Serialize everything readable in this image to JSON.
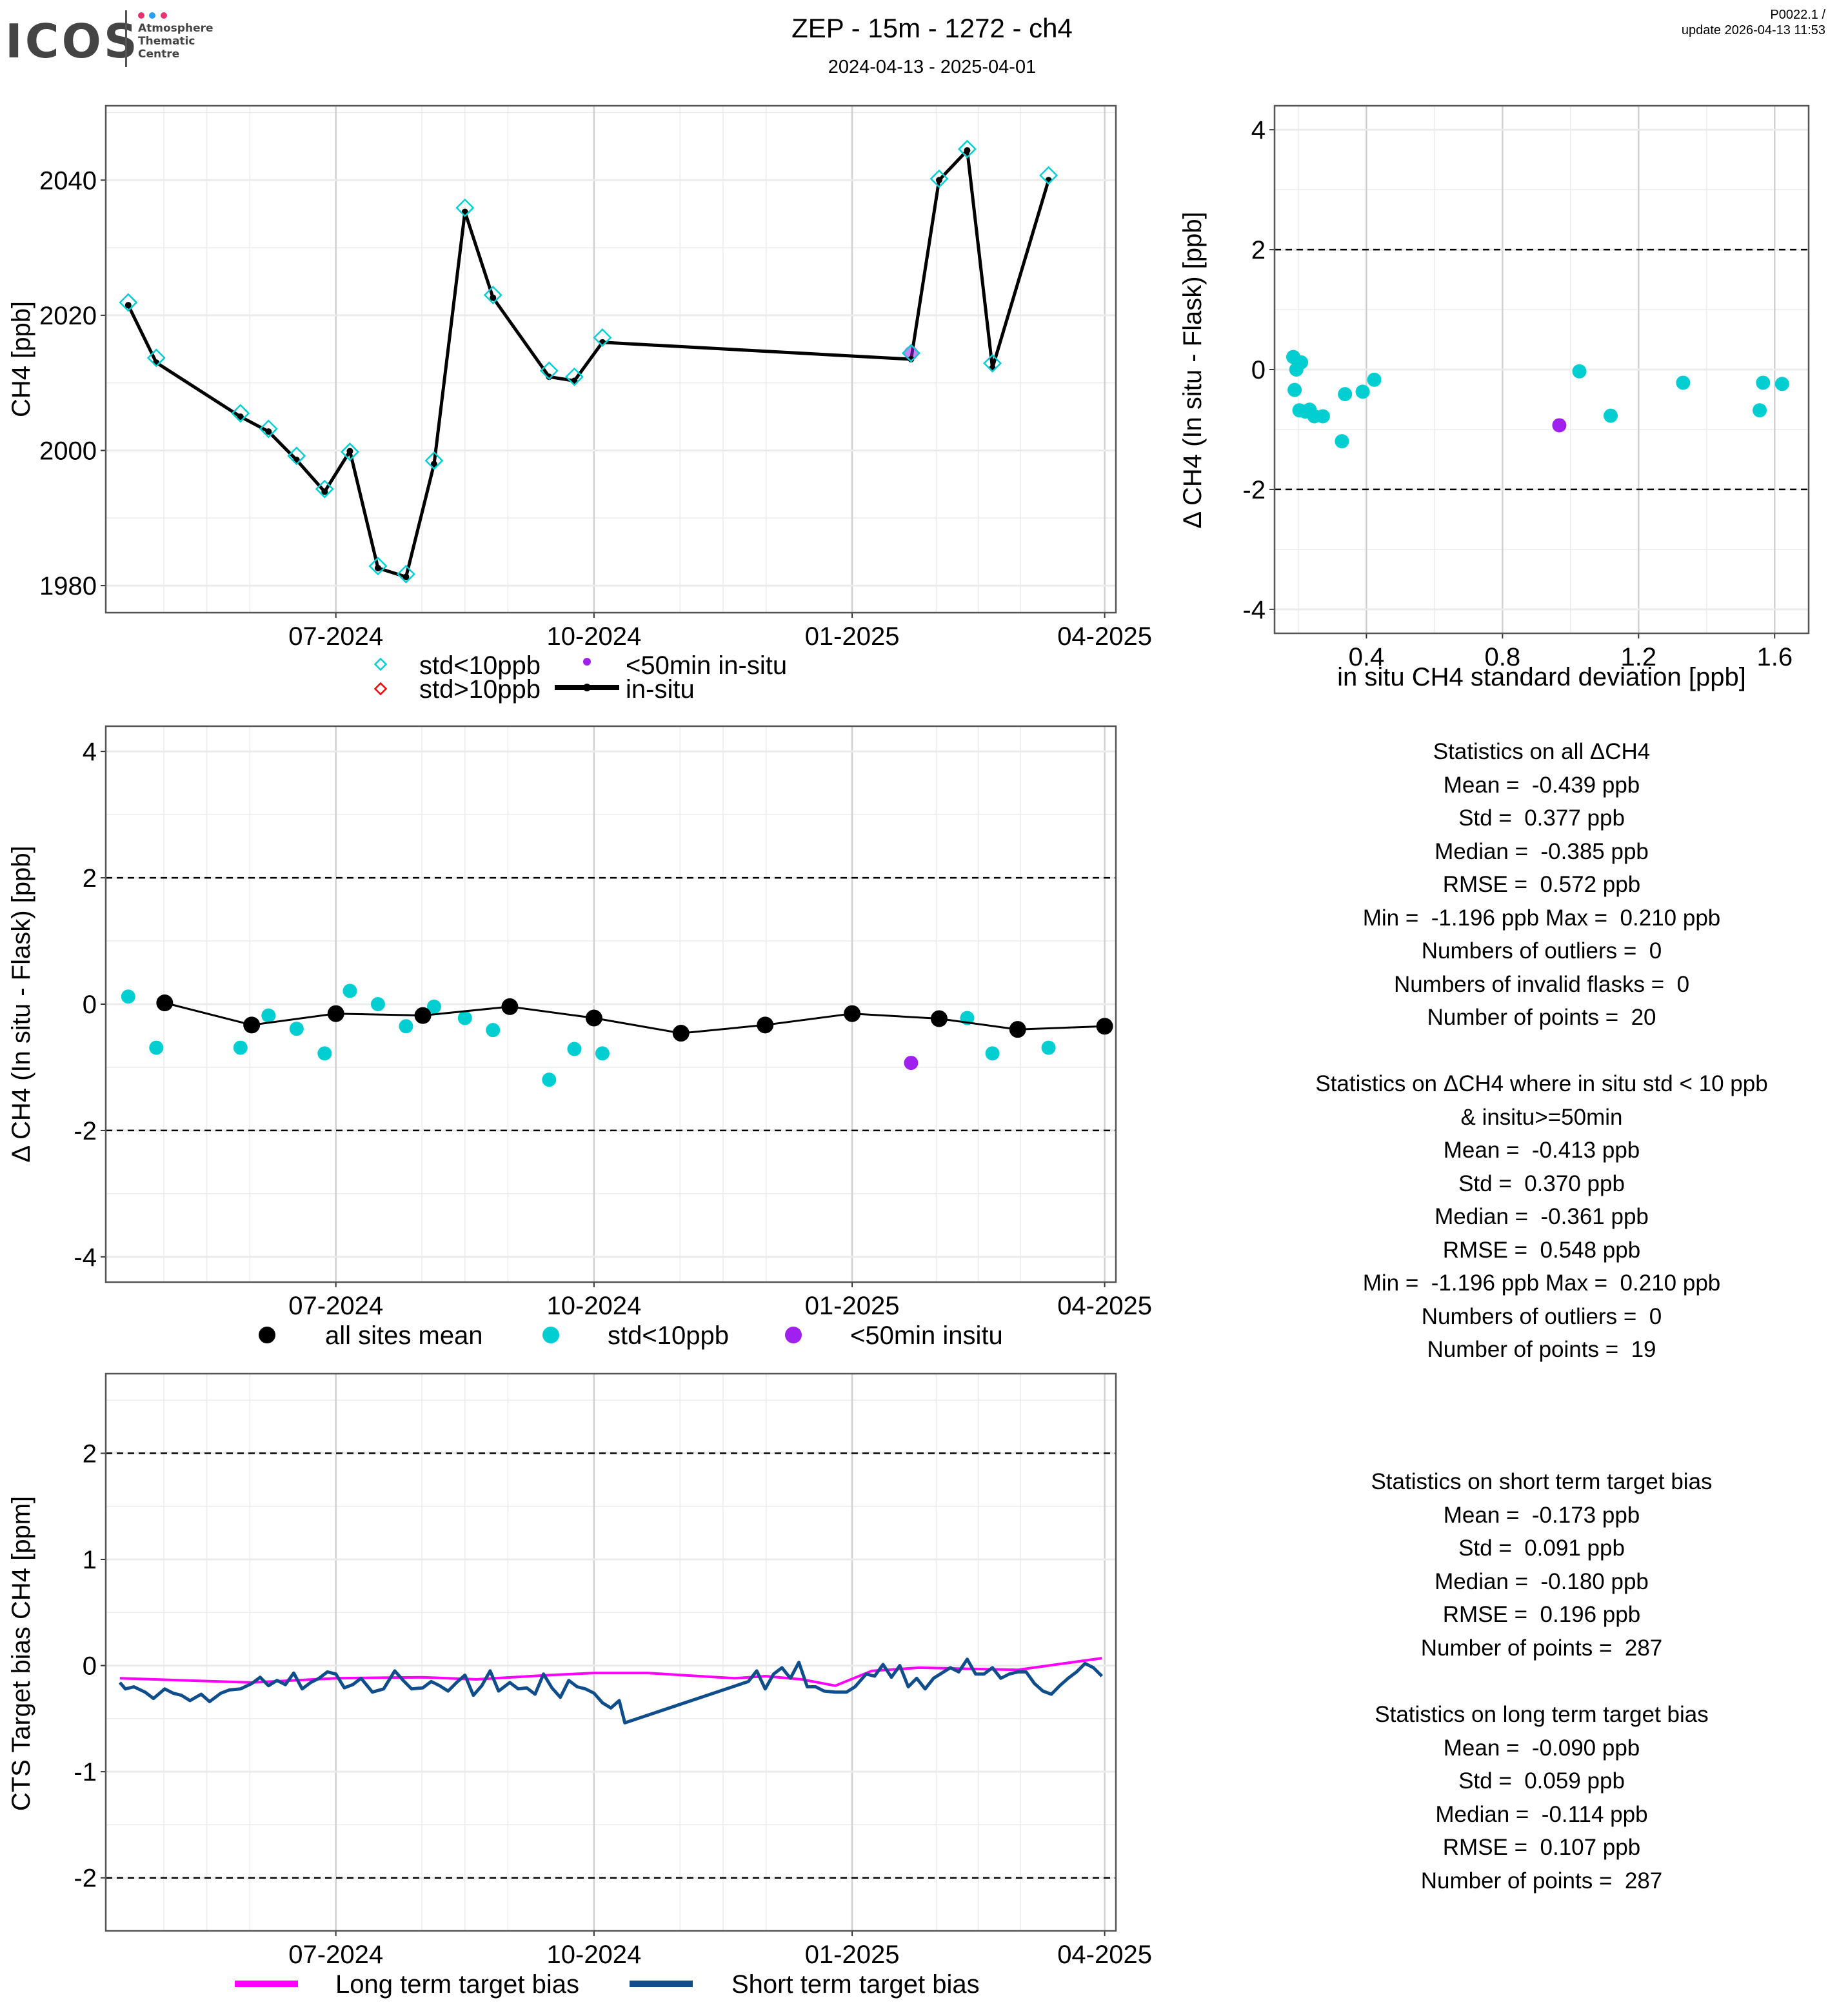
{
  "header": {
    "logo_text": "ICOS",
    "logo_sub": [
      "Atmosphere",
      "Thematic",
      "Centre"
    ],
    "logo_dot_colors": [
      "#e6336f",
      "#2a9df4",
      "#e6336f"
    ],
    "title": "ZEP - 15m - 1272 - ch4",
    "subtitle": "2024-04-13 - 2025-04-01",
    "version": "P0022.1 /",
    "update": "update  2026-04-13 11:53"
  },
  "colors": {
    "cyan": "#00CED1",
    "purple": "#A020F0",
    "red": "#FF0000",
    "black": "#000000",
    "magenta": "#FF00FF",
    "navy": "#104E8B"
  },
  "chart_data": [
    {
      "id": "timeseries",
      "type": "line",
      "ylabel": "CH4 [ppb]",
      "xlabel": "",
      "x_ticks": [
        "07-2024",
        "10-2024",
        "01-2025",
        "04-2025"
      ],
      "x_tick_dates": [
        "2024-07-01",
        "2024-10-01",
        "2025-01-01",
        "2025-04-01"
      ],
      "xlim": [
        "2024-04-10",
        "2025-04-05"
      ],
      "y_ticks": [
        1980,
        2000,
        2020,
        2040
      ],
      "ylim": [
        1976,
        2051
      ],
      "grid": true,
      "legend": {
        "position": "bottom",
        "items": [
          {
            "label": "std<10ppb",
            "symbol": "diamond",
            "color": "#00CED1"
          },
          {
            "label": "<50min in-situ",
            "symbol": "dot",
            "color": "#A020F0"
          },
          {
            "label": "std>10ppb",
            "symbol": "diamond",
            "color": "#FF0000"
          },
          {
            "label": "in-situ",
            "symbol": "line",
            "color": "#000000"
          }
        ]
      },
      "series": [
        {
          "name": "in-situ",
          "x": [
            "2024-04-18",
            "2024-04-28",
            "2024-05-28",
            "2024-06-07",
            "2024-06-17",
            "2024-06-27",
            "2024-07-06",
            "2024-07-16",
            "2024-07-26",
            "2024-08-05",
            "2024-08-16",
            "2024-08-26",
            "2024-09-15",
            "2024-09-24",
            "2024-10-04",
            "2025-01-22",
            "2025-02-01",
            "2025-02-11",
            "2025-02-20",
            "2025-03-12"
          ],
          "values": [
            2021.5,
            2013.0,
            2005.0,
            2002.8,
            1998.6,
            1993.9,
            1999.9,
            1982.6,
            1981.3,
            1998.0,
            2035.3,
            2022.6,
            2010.9,
            2010.3,
            2016.0,
            2013.5,
            2040.0,
            2044.4,
            2012.2,
            2040.0
          ]
        },
        {
          "name": "flask std<10ppb",
          "x": [
            "2024-04-18",
            "2024-04-28",
            "2024-05-28",
            "2024-06-07",
            "2024-06-17",
            "2024-06-27",
            "2024-07-06",
            "2024-07-16",
            "2024-07-26",
            "2024-08-05",
            "2024-08-16",
            "2024-08-26",
            "2024-09-15",
            "2024-09-24",
            "2024-10-04",
            "2025-01-22",
            "2025-02-01",
            "2025-02-11",
            "2025-02-20",
            "2025-03-12"
          ],
          "values": [
            2021.9,
            2013.7,
            2005.5,
            2003.2,
            1999.2,
            1994.3,
            1999.8,
            1982.9,
            1981.7,
            1998.5,
            2035.9,
            2023.0,
            2011.8,
            2010.9,
            2016.7,
            2014.4,
            2040.2,
            2044.6,
            2012.9,
            2040.7
          ]
        },
        {
          "name": "<50min in-situ",
          "x": [
            "2025-01-22"
          ],
          "values": [
            2014.4
          ]
        }
      ]
    },
    {
      "id": "scatter_std",
      "type": "scatter",
      "xlabel": "in situ CH4 standard deviation [ppb]",
      "ylabel": "Δ CH4 (In situ - Flask) [ppb]",
      "x_ticks": [
        0.4,
        0.8,
        1.2,
        1.6
      ],
      "xlim": [
        0.13,
        1.7
      ],
      "y_ticks": [
        -4,
        -2,
        0,
        2,
        4
      ],
      "ylim": [
        -4.4,
        4.4
      ],
      "hlines": [
        2,
        -2
      ],
      "grid": true,
      "series": [
        {
          "name": "std<10ppb",
          "x": [
            0.185,
            0.208,
            0.194,
            0.189,
            0.203,
            0.22,
            0.233,
            0.247,
            0.272,
            0.328,
            0.337,
            0.389,
            0.423,
            1.026,
            1.118,
            1.331,
            1.556,
            1.566,
            1.622
          ],
          "values": [
            0.21,
            0.12,
            0.0,
            -0.34,
            -0.68,
            -0.7,
            -0.67,
            -0.78,
            -0.78,
            -1.196,
            -0.41,
            -0.37,
            -0.17,
            -0.03,
            -0.77,
            -0.22,
            -0.68,
            -0.22,
            -0.24
          ]
        },
        {
          "name": "<50min insitu",
          "x": [
            0.967
          ],
          "values": [
            -0.93
          ]
        }
      ]
    },
    {
      "id": "delta_timeseries",
      "type": "scatter",
      "xlabel": "",
      "ylabel": "Δ CH4 (In situ - Flask) [ppb]",
      "x_ticks": [
        "07-2024",
        "10-2024",
        "01-2025",
        "04-2025"
      ],
      "x_tick_dates": [
        "2024-07-01",
        "2024-10-01",
        "2025-01-01",
        "2025-04-01"
      ],
      "xlim": [
        "2024-04-10",
        "2025-04-05"
      ],
      "y_ticks": [
        -4,
        -2,
        0,
        2,
        4
      ],
      "ylim": [
        -4.4,
        4.4
      ],
      "hlines": [
        2,
        -2
      ],
      "grid": true,
      "legend": {
        "position": "bottom",
        "items": [
          {
            "label": "all sites mean",
            "color": "#000000"
          },
          {
            "label": "std<10ppb",
            "color": "#00CED1"
          },
          {
            "label": "<50min insitu",
            "color": "#A020F0"
          }
        ]
      },
      "series": [
        {
          "name": "std<10ppb",
          "x": [
            "2024-04-18",
            "2024-04-28",
            "2024-05-28",
            "2024-06-07",
            "2024-06-17",
            "2024-06-27",
            "2024-07-06",
            "2024-07-16",
            "2024-07-26",
            "2024-08-05",
            "2024-08-16",
            "2024-08-26",
            "2024-09-15",
            "2024-09-24",
            "2024-10-04",
            "2025-02-01",
            "2025-02-11",
            "2025-02-20",
            "2025-03-12"
          ],
          "values": [
            0.12,
            -0.69,
            -0.69,
            -0.18,
            -0.39,
            -0.78,
            0.21,
            0.0,
            -0.35,
            -0.04,
            -0.22,
            -0.41,
            -1.196,
            -0.71,
            -0.78,
            -0.23,
            -0.22,
            -0.78,
            -0.69
          ]
        },
        {
          "name": "<50min insitu",
          "x": [
            "2025-01-22"
          ],
          "values": [
            -0.93
          ]
        },
        {
          "name": "all sites mean",
          "x": [
            "2024-05-01",
            "2024-06-01",
            "2024-07-01",
            "2024-08-01",
            "2024-09-01",
            "2024-10-01",
            "2024-11-01",
            "2024-12-01",
            "2025-01-01",
            "2025-02-01",
            "2025-03-01",
            "2025-04-01"
          ],
          "values": [
            0.02,
            -0.33,
            -0.15,
            -0.18,
            -0.04,
            -0.22,
            -0.46,
            -0.33,
            -0.15,
            -0.23,
            -0.4,
            -0.35
          ]
        }
      ]
    },
    {
      "id": "target_bias",
      "type": "line",
      "xlabel": "",
      "ylabel": "CTS Target bias CH4 [ppm]",
      "x_ticks": [
        "07-2024",
        "10-2024",
        "01-2025",
        "04-2025"
      ],
      "x_tick_dates": [
        "2024-07-01",
        "2024-10-01",
        "2025-01-01",
        "2025-04-01"
      ],
      "xlim": [
        "2024-04-10",
        "2025-04-05"
      ],
      "y_ticks": [
        -2,
        -1,
        0,
        1,
        2
      ],
      "ylim": [
        -2.5,
        2.75
      ],
      "hlines": [
        2,
        -2
      ],
      "grid": true,
      "legend": {
        "position": "bottom",
        "items": [
          {
            "label": "Long term target bias",
            "color": "#FF00FF"
          },
          {
            "label": "Short term target bias",
            "color": "#104E8B"
          }
        ]
      },
      "series": [
        {
          "name": "Long term target bias",
          "x": [
            "2024-04-15",
            "2024-06-01",
            "2024-07-01",
            "2024-08-01",
            "2024-08-20",
            "2024-09-15",
            "2024-10-01",
            "2024-10-20",
            "2024-11-20",
            "2024-12-01",
            "2024-12-14",
            "2024-12-26",
            "2025-01-08",
            "2025-01-25",
            "2025-02-10",
            "2025-03-01",
            "2025-03-31"
          ],
          "values": [
            -0.12,
            -0.16,
            -0.12,
            -0.11,
            -0.13,
            -0.09,
            -0.07,
            -0.07,
            -0.12,
            -0.1,
            -0.13,
            -0.19,
            -0.05,
            -0.02,
            -0.03,
            -0.04,
            0.07
          ]
        },
        {
          "name": "Short term target bias",
          "x": [
            "2024-04-15",
            "2024-04-17",
            "2024-04-20",
            "2024-04-24",
            "2024-04-27",
            "2024-05-01",
            "2024-05-04",
            "2024-05-07",
            "2024-05-10",
            "2024-05-14",
            "2024-05-17",
            "2024-05-21",
            "2024-05-24",
            "2024-05-28",
            "2024-06-01",
            "2024-06-04",
            "2024-06-07",
            "2024-06-10",
            "2024-06-13",
            "2024-06-16",
            "2024-06-19",
            "2024-06-22",
            "2024-06-25",
            "2024-06-28",
            "2024-07-01",
            "2024-07-04",
            "2024-07-07",
            "2024-07-10",
            "2024-07-14",
            "2024-07-18",
            "2024-07-22",
            "2024-07-25",
            "2024-07-28",
            "2024-08-01",
            "2024-08-04",
            "2024-08-07",
            "2024-08-10",
            "2024-08-13",
            "2024-08-16",
            "2024-08-19",
            "2024-08-22",
            "2024-08-25",
            "2024-08-28",
            "2024-09-01",
            "2024-09-04",
            "2024-09-07",
            "2024-09-10",
            "2024-09-13",
            "2024-09-16",
            "2024-09-19",
            "2024-09-22",
            "2024-09-25",
            "2024-09-28",
            "2024-10-01",
            "2024-10-04",
            "2024-10-07",
            "2024-10-10",
            "2024-10-12",
            "2024-11-25",
            "2024-11-28",
            "2024-12-01",
            "2024-12-04",
            "2024-12-07",
            "2024-12-10",
            "2024-12-13",
            "2024-12-16",
            "2024-12-19",
            "2024-12-22",
            "2024-12-26",
            "2024-12-30",
            "2025-01-02",
            "2025-01-06",
            "2025-01-09",
            "2025-01-12",
            "2025-01-15",
            "2025-01-18",
            "2025-01-21",
            "2025-01-24",
            "2025-01-27",
            "2025-01-30",
            "2025-02-02",
            "2025-02-05",
            "2025-02-08",
            "2025-02-11",
            "2025-02-14",
            "2025-02-17",
            "2025-02-20",
            "2025-02-23",
            "2025-02-26",
            "2025-03-01",
            "2025-03-04",
            "2025-03-07",
            "2025-03-10",
            "2025-03-13",
            "2025-03-16",
            "2025-03-19",
            "2025-03-22",
            "2025-03-25",
            "2025-03-28",
            "2025-03-31"
          ],
          "values": [
            -0.16,
            -0.22,
            -0.2,
            -0.25,
            -0.31,
            -0.22,
            -0.26,
            -0.28,
            -0.33,
            -0.27,
            -0.34,
            -0.26,
            -0.23,
            -0.22,
            -0.17,
            -0.11,
            -0.19,
            -0.14,
            -0.18,
            -0.07,
            -0.22,
            -0.16,
            -0.12,
            -0.06,
            -0.08,
            -0.21,
            -0.18,
            -0.12,
            -0.25,
            -0.22,
            -0.05,
            -0.14,
            -0.22,
            -0.21,
            -0.15,
            -0.19,
            -0.24,
            -0.16,
            -0.09,
            -0.28,
            -0.19,
            -0.05,
            -0.24,
            -0.16,
            -0.22,
            -0.21,
            -0.27,
            -0.08,
            -0.21,
            -0.3,
            -0.14,
            -0.2,
            -0.22,
            -0.26,
            -0.35,
            -0.4,
            -0.33,
            -0.54,
            -0.15,
            -0.05,
            -0.22,
            -0.08,
            -0.02,
            -0.12,
            0.03,
            -0.2,
            -0.2,
            -0.24,
            -0.25,
            -0.25,
            -0.2,
            -0.08,
            -0.1,
            0.01,
            -0.11,
            0.0,
            -0.2,
            -0.12,
            -0.22,
            -0.12,
            -0.07,
            -0.02,
            -0.06,
            0.06,
            -0.08,
            -0.08,
            -0.02,
            -0.12,
            -0.08,
            -0.06,
            -0.06,
            -0.17,
            -0.24,
            -0.27,
            -0.19,
            -0.12,
            -0.06,
            0.02,
            -0.02,
            -0.1
          ]
        }
      ]
    }
  ],
  "stats": {
    "all": {
      "title": "Statistics on all ΔCH4",
      "lines": [
        "Mean =  -0.439 ppb",
        "Std =  0.377 ppb",
        "Median =  -0.385 ppb",
        "RMSE =  0.572 ppb",
        "Min =  -1.196 ppb Max =  0.210 ppb",
        "Numbers of outliers =  0",
        "Numbers of invalid flasks =  0",
        "Number of points =  20"
      ]
    },
    "filtered": {
      "title": "Statistics on ΔCH4 where in situ std < 10 ppb",
      "title2": "& insitu>=50min",
      "lines": [
        "Mean =  -0.413 ppb",
        "Std =  0.370 ppb",
        "Median =  -0.361 ppb",
        "RMSE =  0.548 ppb",
        "Min =  -1.196 ppb Max =  0.210 ppb",
        "Numbers of outliers =  0",
        "Number of points =  19"
      ]
    },
    "short_term": {
      "title": "Statistics on short term target bias",
      "lines": [
        "Mean =  -0.173 ppb",
        "Std =  0.091 ppb",
        "Median =  -0.180 ppb",
        "RMSE =  0.196 ppb",
        "Number of points =  287"
      ]
    },
    "long_term": {
      "title": "Statistics on long term target bias",
      "lines": [
        "Mean =  -0.090 ppb",
        "Std =  0.059 ppb",
        "Median =  -0.114 ppb",
        "RMSE =  0.107 ppb",
        "Number of points =  287"
      ]
    }
  }
}
